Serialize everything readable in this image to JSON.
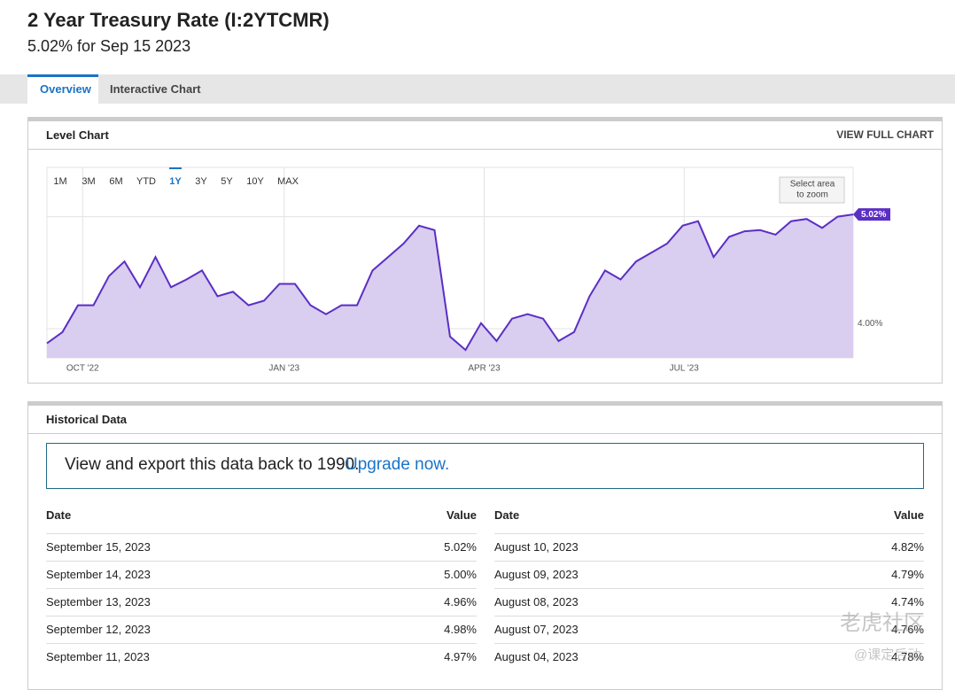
{
  "header": {
    "title": "2 Year Treasury Rate (I:2YTCMR)",
    "subtitle": "5.02% for Sep 15 2023"
  },
  "tabs": [
    "Overview",
    "Interactive Chart"
  ],
  "chart_panel": {
    "title": "Level Chart",
    "link": "VIEW FULL CHART"
  },
  "chart_data": {
    "type": "line",
    "ranges": [
      "1M",
      "3M",
      "6M",
      "YTD",
      "1Y",
      "3Y",
      "5Y",
      "10Y",
      "MAX"
    ],
    "zoom_hint": [
      "Select area",
      "to zoom"
    ],
    "color": "#5b2ec4",
    "fill": "#d9cdf0",
    "values": [
      3.87,
      3.97,
      4.21,
      4.21,
      4.47,
      4.6,
      4.37,
      4.64,
      4.37,
      4.44,
      4.52,
      4.29,
      4.33,
      4.21,
      4.25,
      4.4,
      4.4,
      4.21,
      4.13,
      4.21,
      4.21,
      4.52,
      4.64,
      4.76,
      4.92,
      4.88,
      3.93,
      3.81,
      4.05,
      3.89,
      4.09,
      4.13,
      4.09,
      3.89,
      3.97,
      4.29,
      4.52,
      4.44,
      4.6,
      4.68,
      4.76,
      4.92,
      4.96,
      4.64,
      4.82,
      4.87,
      4.88,
      4.84,
      4.96,
      4.98,
      4.9,
      5.0,
      5.02
    ],
    "value_labels": [
      null,
      null,
      null,
      null,
      null,
      null,
      null,
      null,
      null,
      null,
      null,
      null,
      null,
      null,
      null,
      null,
      null,
      null,
      null,
      null,
      null,
      null,
      null,
      null,
      null,
      null,
      null,
      null,
      null,
      null,
      null,
      null,
      null,
      null,
      null,
      null,
      null,
      null,
      null,
      null,
      null,
      null,
      null,
      null,
      null,
      null,
      null,
      null,
      null,
      null,
      null,
      null,
      "5.02%"
    ],
    "xlim": [
      0,
      52
    ],
    "xticks": [
      {
        "value": 2.3,
        "label": "OCT '22"
      },
      {
        "value": 15.3,
        "label": "JAN '23"
      },
      {
        "value": 28.2,
        "label": "APR '23"
      },
      {
        "value": 41.1,
        "label": "JUL '23"
      }
    ],
    "ylim": [
      3.74,
      5.44
    ],
    "yticks": [
      {
        "value": 4,
        "label": "4.00%"
      },
      {
        "value": 5,
        "label": null
      }
    ],
    "grid": true
  },
  "historical": {
    "title": "Historical Data",
    "notice": "View and export this data back to 1990.",
    "notice_link": "Upgrade now.",
    "columns": [
      "Date",
      "Value"
    ],
    "left_rows": [
      [
        "September 15, 2023",
        "5.02%"
      ],
      [
        "September 14, 2023",
        "5.00%"
      ],
      [
        "September 13, 2023",
        "4.96%"
      ],
      [
        "September 12, 2023",
        "4.98%"
      ],
      [
        "September 11, 2023",
        "4.97%"
      ]
    ],
    "right_rows": [
      [
        "August 10, 2023",
        "4.82%"
      ],
      [
        "August 09, 2023",
        "4.79%"
      ],
      [
        "August 08, 2023",
        "4.74%"
      ],
      [
        "August 07, 2023",
        "4.76%"
      ],
      [
        "August 04, 2023",
        "4.78%"
      ]
    ]
  },
  "watermark": [
    "老虎社区",
    "@课定后动"
  ]
}
